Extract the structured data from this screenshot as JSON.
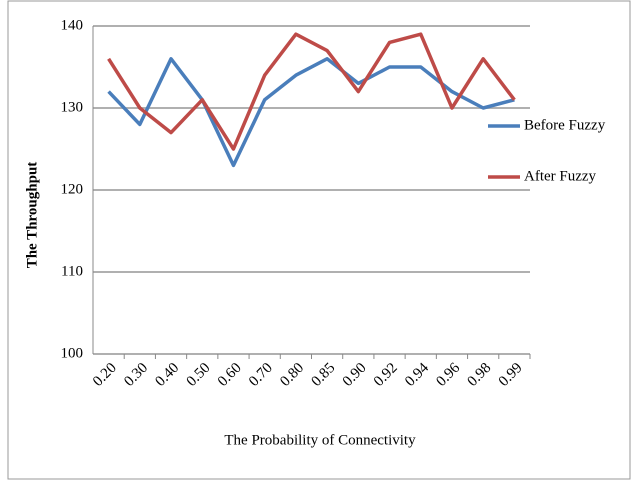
{
  "chart_data": {
    "type": "line",
    "x_label": "The Probability of Connectivity",
    "y_label": "The Throughput",
    "categories": [
      "0.20",
      "0.30",
      "0.40",
      "0.50",
      "0.60",
      "0.70",
      "0.80",
      "0.85",
      "0.90",
      "0.92",
      "0.94",
      "0.96",
      "0.98",
      "0.99"
    ],
    "series": [
      {
        "name": "Before Fuzzy",
        "color": "#4a7ebb",
        "values": [
          132,
          128,
          136,
          131,
          123,
          131,
          134,
          136,
          133,
          135,
          135,
          132,
          130,
          131
        ]
      },
      {
        "name": "After Fuzzy",
        "color": "#be4b48",
        "values": [
          136,
          130,
          127,
          131,
          125,
          134,
          139,
          137,
          132,
          138,
          139,
          130,
          136,
          131
        ]
      }
    ],
    "ylim": [
      100,
      140
    ],
    "yticks": [
      100,
      110,
      120,
      130,
      140
    ],
    "grid": true,
    "legend": "right"
  }
}
